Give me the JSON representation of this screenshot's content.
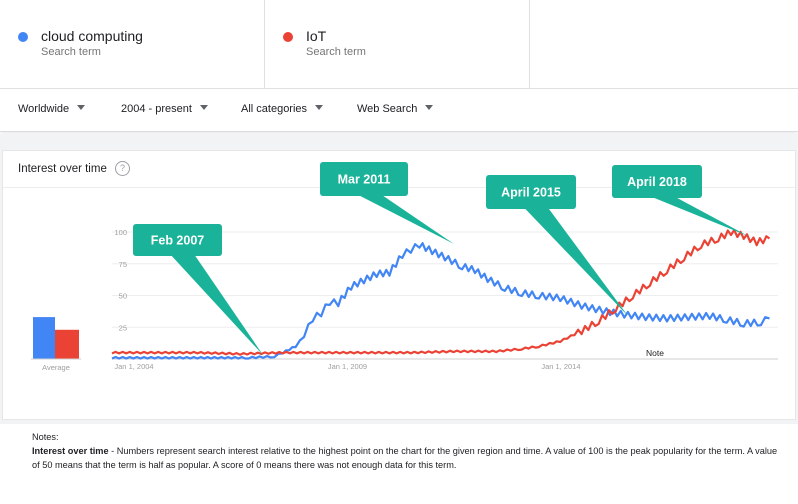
{
  "terms": [
    {
      "name": "cloud computing",
      "sub": "Search term",
      "color": "#4285f4"
    },
    {
      "name": "IoT",
      "sub": "Search term",
      "color": "#ea4335"
    }
  ],
  "filters": {
    "region": "Worldwide",
    "time": "2004 - present",
    "category": "All categories",
    "search_type": "Web Search"
  },
  "card": {
    "title": "Interest over time",
    "help_icon": "?"
  },
  "averages": {
    "label": "Average",
    "cloud": 33,
    "iot": 23
  },
  "callouts": [
    {
      "label": "Feb 2007",
      "color": "#1ab39a"
    },
    {
      "label": "Mar 2011",
      "color": "#1ab39a"
    },
    {
      "label": "April 2015",
      "color": "#1ab39a"
    },
    {
      "label": "April 2018",
      "color": "#1ab39a"
    }
  ],
  "note_label": "Note",
  "notes": {
    "heading": "Notes:",
    "bold": "Interest over time",
    "text": " - Numbers represent search interest relative to the highest point on the chart for the given region and time. A value of 100 is the peak popularity for the term. A value of 50 means that the term is half as popular. A score of 0 means there was not enough data for this term."
  },
  "chart_data": {
    "type": "line",
    "ylim": [
      0,
      100
    ],
    "yticks": [
      "25",
      "50",
      "75",
      "100"
    ],
    "xticks": [
      "Jan 1, 2004",
      "Jan 1, 2009",
      "Jan 1, 2014"
    ],
    "series": [
      {
        "name": "cloud computing",
        "color": "#4285f4",
        "points": [
          [
            2004,
            1
          ],
          [
            2005,
            1
          ],
          [
            2006,
            1
          ],
          [
            2006.8,
            1
          ],
          [
            2007.2,
            1
          ],
          [
            2007.8,
            2
          ],
          [
            2008.0,
            5
          ],
          [
            2008.3,
            10
          ],
          [
            2008.5,
            18
          ],
          [
            2008.7,
            32
          ],
          [
            2008.9,
            36
          ],
          [
            2009.1,
            45
          ],
          [
            2009.3,
            44
          ],
          [
            2009.6,
            57
          ],
          [
            2009.9,
            62
          ],
          [
            2010.2,
            67
          ],
          [
            2010.5,
            68
          ],
          [
            2010.8,
            82
          ],
          [
            2011.0,
            86
          ],
          [
            2011.2,
            90
          ],
          [
            2011.5,
            85
          ],
          [
            2011.8,
            80
          ],
          [
            2012.2,
            73
          ],
          [
            2012.5,
            70
          ],
          [
            2012.8,
            63
          ],
          [
            2013.2,
            56
          ],
          [
            2013.6,
            52
          ],
          [
            2014.0,
            50
          ],
          [
            2014.5,
            48
          ],
          [
            2015.0,
            42
          ],
          [
            2015.5,
            38
          ],
          [
            2016.0,
            35
          ],
          [
            2016.5,
            33
          ],
          [
            2017.0,
            32
          ],
          [
            2017.5,
            33
          ],
          [
            2018.0,
            34
          ],
          [
            2018.4,
            31
          ],
          [
            2018.8,
            28
          ],
          [
            2019.2,
            29
          ],
          [
            2019.4,
            32
          ]
        ]
      },
      {
        "name": "IoT",
        "color": "#ea4335",
        "points": [
          [
            2004,
            5
          ],
          [
            2005,
            5
          ],
          [
            2006,
            5
          ],
          [
            2007,
            4
          ],
          [
            2008,
            5
          ],
          [
            2009,
            5
          ],
          [
            2010,
            5
          ],
          [
            2011,
            5
          ],
          [
            2012,
            6
          ],
          [
            2013,
            6
          ],
          [
            2013.6,
            8
          ],
          [
            2014.0,
            10
          ],
          [
            2014.5,
            14
          ],
          [
            2015.0,
            22
          ],
          [
            2015.4,
            30
          ],
          [
            2015.8,
            40
          ],
          [
            2016.2,
            50
          ],
          [
            2016.6,
            60
          ],
          [
            2017.0,
            70
          ],
          [
            2017.4,
            80
          ],
          [
            2017.8,
            90
          ],
          [
            2018.2,
            95
          ],
          [
            2018.5,
            100
          ],
          [
            2018.8,
            97
          ],
          [
            2019.1,
            92
          ],
          [
            2019.4,
            95
          ]
        ]
      }
    ]
  }
}
